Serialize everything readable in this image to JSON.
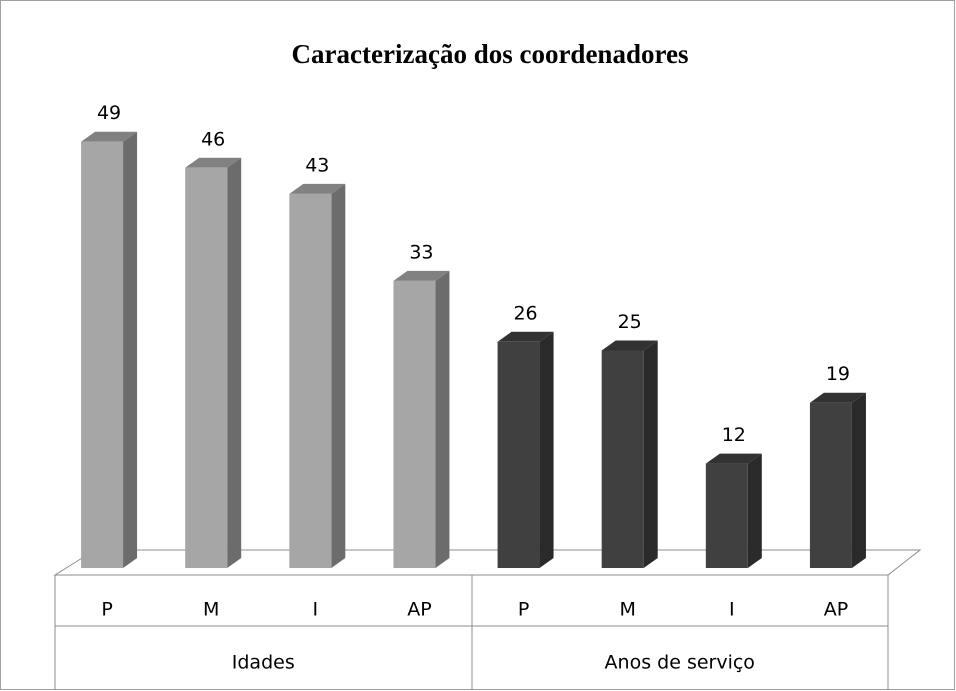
{
  "chart_data": {
    "type": "bar3d",
    "title": "Caracterização dos coordenadores",
    "groups": [
      {
        "name": "Idades",
        "color": "#a6a6a6",
        "categories": [
          "P",
          "M",
          "I",
          "AP"
        ],
        "values": [
          49,
          46,
          43,
          33
        ]
      },
      {
        "name": "Anos de serviço",
        "color": "#404040",
        "categories": [
          "P",
          "M",
          "I",
          "AP"
        ],
        "values": [
          26,
          25,
          12,
          19
        ]
      }
    ]
  }
}
